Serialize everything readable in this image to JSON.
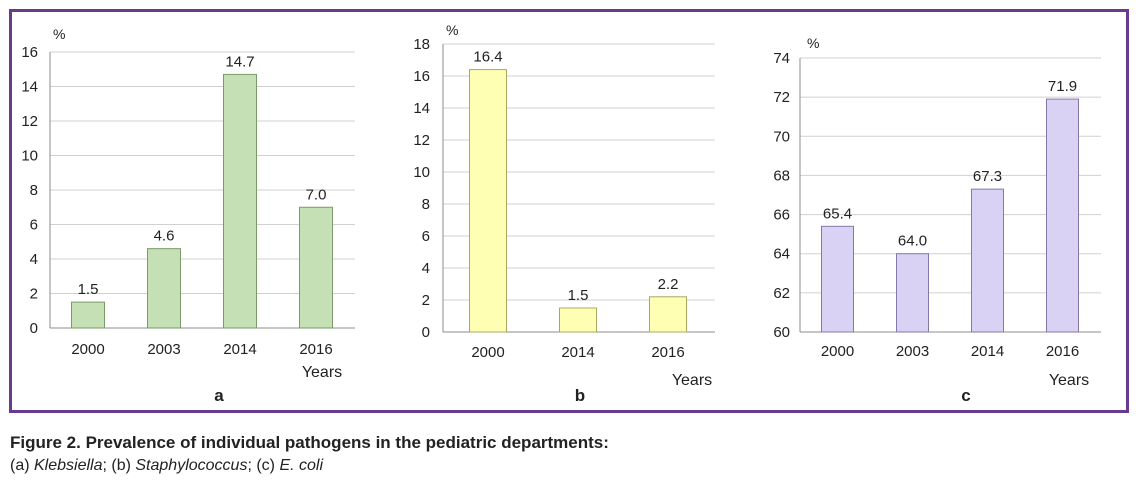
{
  "figure": {
    "title": "Figure 2. Prevalence of individual pathogens in the pediatric departments:",
    "subtitle": [
      {
        "text": "(a) ",
        "italic": false
      },
      {
        "text": "Klebsiella",
        "italic": true
      },
      {
        "text": "; (b) ",
        "italic": false
      },
      {
        "text": "Staphylococcus",
        "italic": true
      },
      {
        "text": "; (c) ",
        "italic": false
      },
      {
        "text": "E. coli",
        "italic": true
      }
    ]
  },
  "chart_data": [
    {
      "type": "bar",
      "panel_label": "a",
      "ylabel": "%",
      "xlabel": "Years",
      "categories": [
        "2000",
        "2003",
        "2014",
        "2016"
      ],
      "values": [
        1.5,
        4.6,
        14.7,
        7.0
      ],
      "data_labels": [
        "1.5",
        "4.6",
        "14.7",
        "7.0"
      ],
      "ylim": [
        0,
        16
      ],
      "yticks": [
        0,
        2,
        4,
        6,
        8,
        10,
        12,
        14,
        16
      ],
      "grid": true,
      "color": "#c5e0b4",
      "stroke": "#7a9a68"
    },
    {
      "type": "bar",
      "panel_label": "b",
      "ylabel": "%",
      "xlabel": "Years",
      "categories": [
        "2000",
        "2014",
        "2016"
      ],
      "values": [
        16.4,
        1.5,
        2.2
      ],
      "data_labels": [
        "16.4",
        "1.5",
        "2.2"
      ],
      "ylim": [
        0,
        18
      ],
      "yticks": [
        0,
        2,
        4,
        6,
        8,
        10,
        12,
        14,
        16,
        18
      ],
      "grid": true,
      "color": "#ffffb3",
      "stroke": "#a8a860"
    },
    {
      "type": "bar",
      "panel_label": "c",
      "ylabel": "%",
      "xlabel": "Years",
      "categories": [
        "2000",
        "2003",
        "2014",
        "2016"
      ],
      "values": [
        65.4,
        64.0,
        67.3,
        71.9
      ],
      "data_labels": [
        "65.4",
        "64.0",
        "67.3",
        "71.9"
      ],
      "ylim": [
        60,
        74
      ],
      "yticks": [
        60,
        62,
        64,
        66,
        68,
        70,
        72,
        74
      ],
      "grid": true,
      "color": "#d9d2f5",
      "stroke": "#8478a8"
    }
  ]
}
